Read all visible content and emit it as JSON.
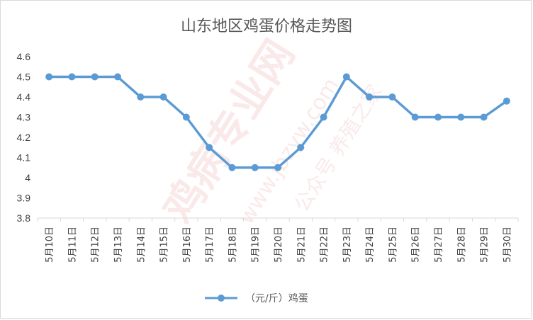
{
  "chart_data": {
    "type": "line",
    "title": "山东地区鸡蛋价格走势图",
    "xlabel": "",
    "ylabel": "",
    "categories": [
      "5月10日",
      "5月11日",
      "5月12日",
      "5月13日",
      "5月14日",
      "5月15日",
      "5月16日",
      "5月17日",
      "5月18日",
      "5月19日",
      "5月20日",
      "5月21日",
      "5月22日",
      "5月23日",
      "5月24日",
      "5月25日",
      "5月26日",
      "5月27日",
      "5月28日",
      "5月29日",
      "5月30日"
    ],
    "series": [
      {
        "name": "（元/斤）鸡蛋",
        "values": [
          4.5,
          4.5,
          4.5,
          4.5,
          4.4,
          4.4,
          4.3,
          4.15,
          4.05,
          4.05,
          4.05,
          4.15,
          4.3,
          4.5,
          4.4,
          4.4,
          4.3,
          4.3,
          4.3,
          4.3,
          4.38
        ],
        "color": "#5b9bd5"
      }
    ],
    "ylim": [
      3.8,
      4.6
    ],
    "yticks": [
      "3.8",
      "3.9",
      "4",
      "4.1",
      "4.2",
      "4.3",
      "4.4",
      "4.5",
      "4.6"
    ],
    "grid": false,
    "legend": "bottom"
  },
  "watermark": {
    "text": "鸡病专业网",
    "url": "www.jbzyw.com",
    "sub": "公众号 养殖之家",
    "color": "#d9534f"
  },
  "colors": {
    "line": "#5b9bd5",
    "axis": "#d9d9d9",
    "text": "#595959"
  }
}
